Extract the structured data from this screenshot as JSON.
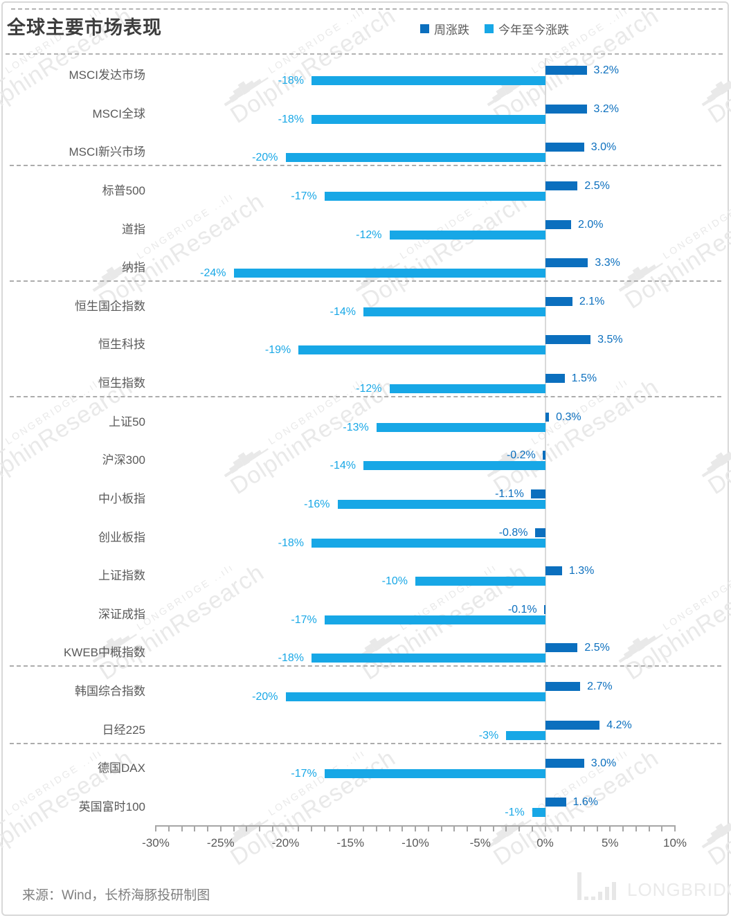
{
  "header": {
    "title": "全球主要市场表现"
  },
  "legend": {
    "items": [
      {
        "label": "周涨跌",
        "color": "#0B6FBE"
      },
      {
        "label": "今年至今涨跌",
        "color": "#17A7E6"
      }
    ]
  },
  "chart_data": {
    "type": "bar",
    "orientation": "horizontal",
    "title": "全球主要市场表现",
    "xlabel": "",
    "ylabel": "",
    "xlim": [
      -30,
      10
    ],
    "grid": false,
    "legend_position": "top-right",
    "categories": [
      "MSCI发达市场",
      "MSCI全球",
      "MSCI新兴市场",
      "标普500",
      "道指",
      "纳指",
      "恒生国企指数",
      "恒生科技",
      "恒生指数",
      "上证50",
      "沪深300",
      "中小板指",
      "创业板指",
      "上证指数",
      "深证成指",
      "KWEB中概指数",
      "韩国综合指数",
      "日经225",
      "德国DAX",
      "英国富时100"
    ],
    "series": [
      {
        "name": "周涨跌",
        "color": "#0B6FBE",
        "values": [
          3.2,
          3.2,
          3.0,
          2.5,
          2.0,
          3.3,
          2.1,
          3.5,
          1.5,
          0.3,
          -0.2,
          -1.1,
          -0.8,
          1.3,
          -0.1,
          2.5,
          2.7,
          4.2,
          3.0,
          1.6
        ],
        "labels": [
          "3.2%",
          "3.2%",
          "3.0%",
          "2.5%",
          "2.0%",
          "3.3%",
          "2.1%",
          "3.5%",
          "1.5%",
          "0.3%",
          "-0.2%",
          "-1.1%",
          "-0.8%",
          "1.3%",
          "-0.1%",
          "2.5%",
          "2.7%",
          "4.2%",
          "3.0%",
          "1.6%"
        ]
      },
      {
        "name": "今年至今涨跌",
        "color": "#17A7E6",
        "values": [
          -18,
          -18,
          -20,
          -17,
          -12,
          -24,
          -14,
          -19,
          -12,
          -13,
          -14,
          -16,
          -18,
          -10,
          -17,
          -18,
          -20,
          -3,
          -17,
          -1
        ],
        "labels": [
          "-18%",
          "-18%",
          "-20%",
          "-17%",
          "-12%",
          "-24%",
          "-14%",
          "-19%",
          "-12%",
          "-13%",
          "-14%",
          "-16%",
          "-18%",
          "-10%",
          "-17%",
          "-18%",
          "-20%",
          "-3%",
          "-17%",
          "-1%"
        ]
      }
    ],
    "x_tick_labels": [
      "-30%",
      "-25%",
      "-20%",
      "-15%",
      "-10%",
      "-5%",
      "0%",
      "5%",
      "10%"
    ],
    "separator_after": [
      "MSCI新兴市场",
      "纳指",
      "恒生指数",
      "KWEB中概指数",
      "日经225"
    ]
  },
  "footer": {
    "source": "来源：Wind，长桥海豚投研制图"
  },
  "watermark": {
    "brand": "LONGBRIDGE",
    "research": "DolphinResearch"
  },
  "logo": {
    "text": "LONGBRIDGE"
  }
}
